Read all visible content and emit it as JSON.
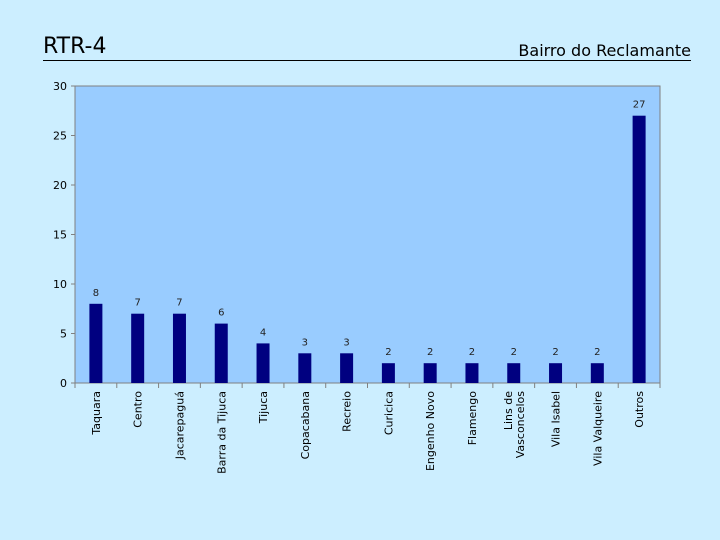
{
  "slide": {
    "title": "RTR-4",
    "subtitle": "Bairro do Reclamante"
  },
  "colors": {
    "background": "#cceeff",
    "plot_area": "#99ccff",
    "bar": "#000080"
  },
  "chart_data": {
    "type": "bar",
    "title": "",
    "xlabel": "",
    "ylabel": "",
    "ylim": [
      0,
      30
    ],
    "yticks": [
      0,
      5,
      10,
      15,
      20,
      25,
      30
    ],
    "grid": false,
    "legend": "none",
    "categories": [
      "Taquara",
      "Centro",
      "Jacarepaguá",
      "Barra da Tijuca",
      "Tijuca",
      "Copacabana",
      "Recreio",
      "Curicica",
      "Engenho Novo",
      "Flamengo",
      "Lins de Vasconcelos",
      "Vila Isabel",
      "Vila Valqueire",
      "Outros"
    ],
    "values": [
      8,
      7,
      7,
      6,
      4,
      3,
      3,
      2,
      2,
      2,
      2,
      2,
      2,
      27
    ]
  }
}
